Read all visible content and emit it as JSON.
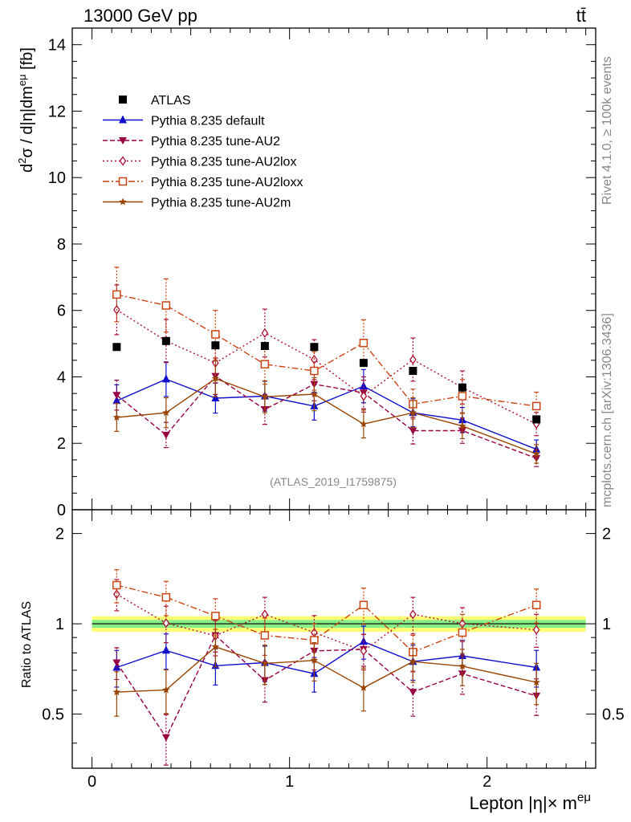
{
  "header": {
    "energy_label": "13000 GeV pp",
    "process_label": "tt̄"
  },
  "side_labels": {
    "rivet": "Rivet 4.1.0, ≥ 100k events",
    "mcplots": "mcplots.cern.ch [arXiv:1306.3436]"
  },
  "watermark": "(ATLAS_2019_I1759875)",
  "colors": {
    "data": "#000000",
    "default": "#1010cc",
    "au2": "#990044",
    "au2lox": "#aa1133",
    "au2loxx": "#cc4411",
    "au2m": "#994400",
    "band_inner": "#88ee88",
    "band_outer": "#ffff77"
  },
  "chart_data": [
    {
      "type": "scatter",
      "panel": "main",
      "ylabel": "d²σ / d|η|dm^eμ [fb]",
      "ylim": [
        0,
        14.5
      ],
      "yticks": [
        0,
        2,
        4,
        6,
        8,
        10,
        12,
        14
      ],
      "xlim": [
        -0.1,
        2.55
      ],
      "x": [
        0.125,
        0.375,
        0.625,
        0.875,
        1.125,
        1.375,
        1.625,
        1.875,
        2.25
      ],
      "legend_placement": "upper-left",
      "series": [
        {
          "key": "data",
          "name": "ATLAS",
          "marker": "square",
          "line": "none",
          "values": [
            4.9,
            5.08,
            4.95,
            4.93,
            4.9,
            4.42,
            4.18,
            3.68,
            2.72
          ],
          "errors": [
            0,
            0,
            0,
            0,
            0,
            0,
            0,
            0,
            0
          ]
        },
        {
          "key": "default",
          "name": "Pythia 8.235 default",
          "marker": "triangle-up",
          "line": "solid",
          "values": [
            3.28,
            3.93,
            3.36,
            3.42,
            3.12,
            3.72,
            2.92,
            2.7,
            1.82
          ],
          "errors": [
            0.48,
            0.52,
            0.45,
            0.45,
            0.42,
            0.5,
            0.42,
            0.38,
            0.28
          ]
        },
        {
          "key": "au2",
          "name": "Pythia 8.235 tune-AU2",
          "marker": "triangle-down",
          "line": "dashed",
          "values": [
            3.45,
            2.25,
            4.02,
            3.02,
            3.78,
            3.52,
            2.38,
            2.38,
            1.55
          ],
          "errors": [
            0.45,
            0.38,
            0.55,
            0.45,
            0.5,
            0.48,
            0.4,
            0.38,
            0.25
          ]
        },
        {
          "key": "au2lox",
          "name": "Pythia 8.235 tune-AU2lox",
          "marker": "diamond-open",
          "line": "dotted",
          "values": [
            6.02,
            5.08,
            4.42,
            5.32,
            4.52,
            3.42,
            4.52,
            3.68,
            2.58
          ],
          "errors": [
            0.75,
            0.65,
            0.6,
            0.72,
            0.6,
            0.48,
            0.65,
            0.5,
            0.35
          ]
        },
        {
          "key": "au2loxx",
          "name": "Pythia 8.235 tune-AU2loxx",
          "marker": "square-open",
          "line": "dashdot",
          "values": [
            6.48,
            6.15,
            5.28,
            4.38,
            4.18,
            5.02,
            3.18,
            3.42,
            3.12
          ],
          "errors": [
            0.82,
            0.8,
            0.72,
            0.6,
            0.58,
            0.7,
            0.45,
            0.5,
            0.42
          ]
        },
        {
          "key": "au2m",
          "name": "Pythia 8.235 tune-AU2m",
          "marker": "star",
          "line": "solid",
          "values": [
            2.78,
            2.92,
            3.95,
            3.4,
            3.48,
            2.58,
            2.92,
            2.52,
            1.68
          ],
          "errors": [
            0.42,
            0.45,
            0.55,
            0.48,
            0.5,
            0.42,
            0.45,
            0.38,
            0.28
          ]
        }
      ]
    },
    {
      "type": "scatter",
      "panel": "ratio",
      "ylabel": "Ratio to ATLAS",
      "xlabel": "Lepton |η|× m^eμ",
      "ylim": [
        0.33,
        2.4
      ],
      "yticks": [
        0.5,
        1,
        2
      ],
      "ytick_labels": [
        "0.5",
        "1",
        "2"
      ],
      "xlim": [
        -0.1,
        2.55
      ],
      "xticks": [
        0,
        1,
        2
      ],
      "xtick_labels": [
        "0",
        "1",
        "2"
      ],
      "x": [
        0.125,
        0.375,
        0.625,
        0.875,
        1.125,
        1.375,
        1.625,
        1.875,
        2.25
      ],
      "band": {
        "inner": 0.03,
        "outer": 0.06,
        "x_range": [
          0.0,
          2.5
        ]
      },
      "series": [
        {
          "key": "default",
          "name": "Pythia 8.235 default",
          "values": [
            0.715,
            0.815,
            0.725,
            0.742,
            0.682,
            0.872,
            0.748,
            0.782,
            0.715
          ],
          "errors": [
            0.1,
            0.11,
            0.1,
            0.1,
            0.09,
            0.11,
            0.1,
            0.1,
            0.1
          ]
        },
        {
          "key": "au2",
          "name": "Pythia 8.235 tune-AU2",
          "values": [
            0.742,
            0.418,
            0.915,
            0.648,
            0.812,
            0.822,
            0.592,
            0.682,
            0.575
          ],
          "errors": [
            0.09,
            0.08,
            0.11,
            0.1,
            0.11,
            0.1,
            0.1,
            0.1,
            0.08
          ]
        },
        {
          "key": "au2lox",
          "name": "Pythia 8.235 tune-AU2lox",
          "values": [
            1.255,
            1.005,
            0.912,
            1.075,
            0.935,
            0.812,
            1.075,
            1.002,
            0.955
          ],
          "errors": [
            0.15,
            0.14,
            0.13,
            0.15,
            0.13,
            0.11,
            0.15,
            0.13,
            0.12
          ]
        },
        {
          "key": "au2loxx",
          "name": "Pythia 8.235 tune-AU2loxx",
          "values": [
            1.345,
            1.225,
            1.062,
            0.915,
            0.882,
            1.155,
            0.805,
            0.935,
            1.155
          ],
          "errors": [
            0.17,
            0.16,
            0.15,
            0.13,
            0.12,
            0.16,
            0.11,
            0.14,
            0.15
          ]
        },
        {
          "key": "au2m",
          "name": "Pythia 8.235 tune-AU2m",
          "values": [
            0.592,
            0.602,
            0.838,
            0.738,
            0.755,
            0.612,
            0.748,
            0.722,
            0.638
          ],
          "errors": [
            0.1,
            0.1,
            0.12,
            0.11,
            0.11,
            0.1,
            0.11,
            0.1,
            0.1
          ]
        }
      ]
    }
  ]
}
